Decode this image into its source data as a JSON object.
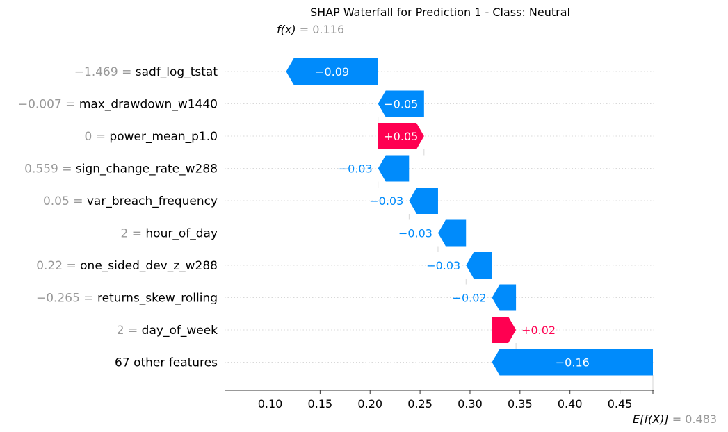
{
  "chart_data": {
    "type": "waterfall",
    "title": "SHAP Waterfall for Prediction 1 - Class: Neutral",
    "fx_label": "f(x)",
    "fx_value": "0.116",
    "ex_label": "E[f(X)]",
    "ex_value": "0.483",
    "fx": 0.116,
    "base_value": 0.483,
    "xlim": [
      0.06,
      0.485
    ],
    "xticks": [
      0.1,
      0.15,
      0.2,
      0.25,
      0.3,
      0.35,
      0.4,
      0.45
    ],
    "xtick_labels": [
      "0.10",
      "0.15",
      "0.20",
      "0.25",
      "0.30",
      "0.35",
      "0.40",
      "0.45"
    ],
    "colors": {
      "positive": "#ff0051",
      "negative": "#008bfb",
      "value_gray": "#999999"
    },
    "rows": [
      {
        "value": "−1.469",
        "feature": "sadf_log_tstat",
        "start": 0.208,
        "end": 0.116,
        "label": "−0.09"
      },
      {
        "value": "−0.007",
        "feature": "max_drawdown_w1440",
        "start": 0.254,
        "end": 0.208,
        "label": "−0.05"
      },
      {
        "value": "0",
        "feature": "power_mean_p1.0",
        "start": 0.208,
        "end": 0.254,
        "label": "+0.05"
      },
      {
        "value": "0.559",
        "feature": "sign_change_rate_w288",
        "start": 0.239,
        "end": 0.208,
        "label": "−0.03"
      },
      {
        "value": "0.05",
        "feature": "var_breach_frequency",
        "start": 0.268,
        "end": 0.239,
        "label": "−0.03"
      },
      {
        "value": "2",
        "feature": "hour_of_day",
        "start": 0.296,
        "end": 0.268,
        "label": "−0.03"
      },
      {
        "value": "0.22",
        "feature": "one_sided_dev_z_w288",
        "start": 0.322,
        "end": 0.296,
        "label": "−0.03"
      },
      {
        "value": "−0.265",
        "feature": "returns_skew_rolling",
        "start": 0.346,
        "end": 0.322,
        "label": "−0.02"
      },
      {
        "value": "2",
        "feature": "day_of_week",
        "start": 0.322,
        "end": 0.346,
        "label": "+0.02"
      },
      {
        "value": "",
        "feature": "67 other features",
        "start": 0.483,
        "end": 0.322,
        "label": "−0.16"
      }
    ]
  }
}
